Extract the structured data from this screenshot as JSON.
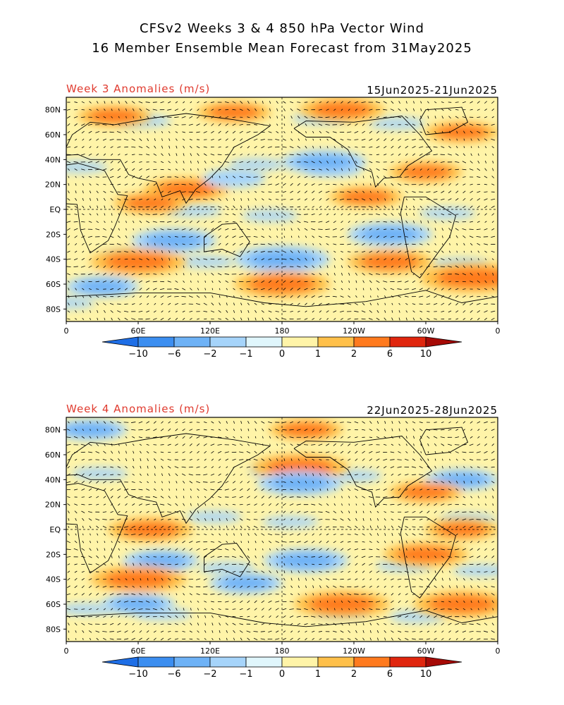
{
  "title": {
    "line1": "CFSv2 Weeks 3 & 4 850 hPa Vector Wind",
    "line2": "16 Member Ensemble Mean Forecast from 31May2025"
  },
  "panels": [
    {
      "label": "Week 3 Anomalies (m/s)",
      "dates": "15Jun2025-21Jun2025"
    },
    {
      "label": "Week 4 Anomalies (m/s)",
      "dates": "22Jun2025-28Jun2025"
    }
  ],
  "lat_ticks": [
    "80N",
    "60N",
    "40N",
    "20N",
    "EQ",
    "20S",
    "40S",
    "60S",
    "80S"
  ],
  "lon_ticks": [
    "0",
    "60E",
    "120E",
    "180",
    "120W",
    "60W",
    "0"
  ],
  "colorbar": {
    "labels": [
      "-10",
      "-6",
      "-2",
      "-1",
      "0",
      "1",
      "2",
      "6",
      "10"
    ],
    "colors": [
      "#1e6ee6",
      "#3c8ef0",
      "#6eb2f6",
      "#a6d4fa",
      "#e0f6fc",
      "#fff4a8",
      "#ffc04a",
      "#ff7a1e",
      "#e0260e",
      "#a60a06"
    ]
  },
  "chart_data": [
    {
      "type": "heatmap",
      "title": "Week 3 Anomalies (m/s)",
      "subtitle": "15Jun2025-21Jun2025",
      "xlabel": "",
      "ylabel": "",
      "xlim": [
        0,
        360
      ],
      "ylim": [
        -90,
        90
      ],
      "levels": [
        -10,
        -6,
        -2,
        -1,
        0,
        1,
        2,
        6,
        10
      ],
      "anomaly_blobs": [
        {
          "lon": 40,
          "lat": 75,
          "value": 3
        },
        {
          "lon": 140,
          "lat": 78,
          "value": 3
        },
        {
          "lon": 230,
          "lat": 80,
          "value": 4
        },
        {
          "lon": 330,
          "lat": 62,
          "value": 3
        },
        {
          "lon": 215,
          "lat": 38,
          "value": -4
        },
        {
          "lon": 100,
          "lat": 16,
          "value": 4
        },
        {
          "lon": 70,
          "lat": 5,
          "value": 3
        },
        {
          "lon": 250,
          "lat": 10,
          "value": 3
        },
        {
          "lon": 90,
          "lat": -25,
          "value": -4
        },
        {
          "lon": 270,
          "lat": -20,
          "value": -4
        },
        {
          "lon": 60,
          "lat": -42,
          "value": 5
        },
        {
          "lon": 180,
          "lat": -40,
          "value": -5
        },
        {
          "lon": 270,
          "lat": -42,
          "value": 4
        },
        {
          "lon": 180,
          "lat": -60,
          "value": 5
        },
        {
          "lon": 340,
          "lat": -55,
          "value": 6
        },
        {
          "lon": 30,
          "lat": -62,
          "value": -3
        },
        {
          "lon": 140,
          "lat": 25,
          "value": -2
        },
        {
          "lon": 300,
          "lat": 30,
          "value": 3
        }
      ]
    },
    {
      "type": "heatmap",
      "title": "Week 4 Anomalies (m/s)",
      "subtitle": "22Jun2025-28Jun2025",
      "xlabel": "",
      "ylabel": "",
      "xlim": [
        0,
        360
      ],
      "ylim": [
        -90,
        90
      ],
      "levels": [
        -10,
        -6,
        -2,
        -1,
        0,
        1,
        2,
        6,
        10
      ],
      "anomaly_blobs": [
        {
          "lon": 20,
          "lat": 80,
          "value": -3
        },
        {
          "lon": 200,
          "lat": 80,
          "value": 3
        },
        {
          "lon": 195,
          "lat": 50,
          "value": 5
        },
        {
          "lon": 195,
          "lat": 37,
          "value": -4
        },
        {
          "lon": 330,
          "lat": 40,
          "value": -3
        },
        {
          "lon": 300,
          "lat": 30,
          "value": 3
        },
        {
          "lon": 70,
          "lat": 0,
          "value": 4
        },
        {
          "lon": 330,
          "lat": 0,
          "value": 3
        },
        {
          "lon": 80,
          "lat": -25,
          "value": -3
        },
        {
          "lon": 200,
          "lat": -25,
          "value": -4
        },
        {
          "lon": 300,
          "lat": -20,
          "value": 4
        },
        {
          "lon": 60,
          "lat": -40,
          "value": 5
        },
        {
          "lon": 150,
          "lat": -43,
          "value": -3
        },
        {
          "lon": 230,
          "lat": -60,
          "value": 5
        },
        {
          "lon": 330,
          "lat": -60,
          "value": 5
        },
        {
          "lon": 60,
          "lat": -60,
          "value": -3
        }
      ]
    }
  ]
}
